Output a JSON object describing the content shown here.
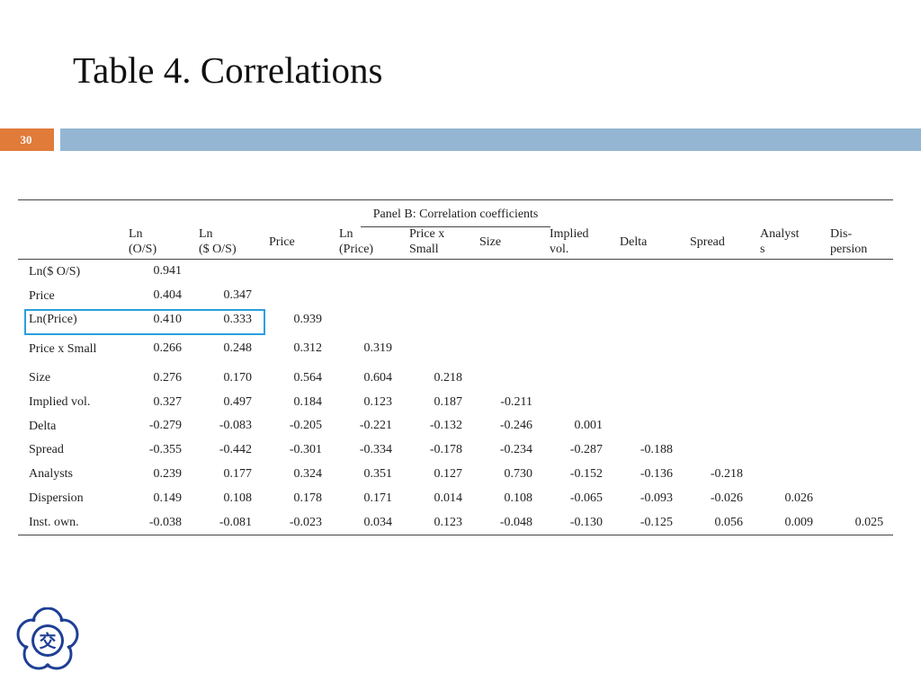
{
  "slide": {
    "title": "Table 4. Correlations",
    "page_number": "30"
  },
  "table": {
    "panel_title": "Panel B: Correlation coefficients",
    "columns": [
      {
        "lines": [
          "Ln",
          "(O/S)"
        ]
      },
      {
        "lines": [
          "Ln",
          "($ O/S)"
        ]
      },
      {
        "lines": [
          "Price"
        ]
      },
      {
        "lines": [
          "Ln",
          "(Price)"
        ]
      },
      {
        "lines": [
          "Price x",
          "Small"
        ]
      },
      {
        "lines": [
          "Size"
        ]
      },
      {
        "lines": [
          "Implied",
          "vol."
        ]
      },
      {
        "lines": [
          "Delta"
        ]
      },
      {
        "lines": [
          "Spread"
        ]
      },
      {
        "lines": [
          "Analyst",
          "s"
        ]
      },
      {
        "lines": [
          "Dis-",
          "persion"
        ]
      }
    ],
    "rows": [
      {
        "label": "Ln($ O/S)",
        "values": [
          "0.941"
        ]
      },
      {
        "label": "Price",
        "values": [
          "0.404",
          "0.347"
        ]
      },
      {
        "label": "Ln(Price)",
        "values": [
          "0.410",
          "0.333",
          "0.939"
        ]
      },
      {
        "label": "Price x Small",
        "values": [
          "0.266",
          "0.248",
          "0.312",
          "0.319"
        ]
      },
      {
        "label": "Size",
        "values": [
          "0.276",
          "0.170",
          "0.564",
          "0.604",
          "0.218"
        ]
      },
      {
        "label": "Implied vol.",
        "values": [
          "0.327",
          "0.497",
          "0.184",
          "0.123",
          "0.187",
          "-0.211"
        ]
      },
      {
        "label": "Delta",
        "values": [
          "-0.279",
          "-0.083",
          "-0.205",
          "-0.221",
          "-0.132",
          "-0.246",
          "0.001"
        ]
      },
      {
        "label": "Spread",
        "values": [
          "-0.355",
          "-0.442",
          "-0.301",
          "-0.334",
          "-0.178",
          "-0.234",
          "-0.287",
          "-0.188"
        ]
      },
      {
        "label": "Analysts",
        "values": [
          "0.239",
          "0.177",
          "0.324",
          "0.351",
          "0.127",
          "0.730",
          "-0.152",
          "-0.136",
          "-0.218"
        ]
      },
      {
        "label": "Dispersion",
        "values": [
          "0.149",
          "0.108",
          "0.178",
          "0.171",
          "0.014",
          "0.108",
          "-0.065",
          "-0.093",
          "-0.026",
          "0.026"
        ]
      },
      {
        "label": "Inst. own.",
        "values": [
          "-0.038",
          "-0.081",
          "-0.023",
          "0.034",
          "0.123",
          "-0.048",
          "-0.130",
          "-0.125",
          "0.056",
          "0.009",
          "0.025"
        ]
      }
    ],
    "highlighted_row": "Ln(Price)"
  },
  "logo": {
    "icon": "university-seal-icon",
    "seal_text": "交",
    "color": "#1e3f95"
  },
  "colors": {
    "page_number_bg": "#e07b39",
    "title_bar": "#94b6d2",
    "highlight": "#2aa0dc"
  }
}
